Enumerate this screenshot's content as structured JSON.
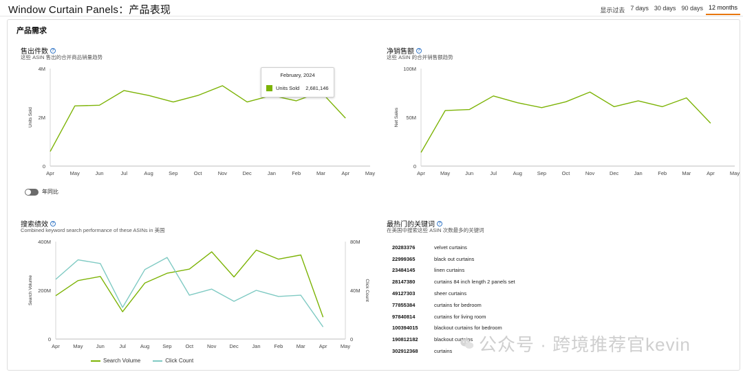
{
  "header": {
    "title": "Window Curtain Panels：产品表现",
    "range_label": "显示过去",
    "range_options": [
      "7 days",
      "30 days",
      "90 days",
      "12 months"
    ],
    "range_active": "12 months",
    "accent": "#e7760d"
  },
  "section_title": "产品需求",
  "units_panel": {
    "title": "售出件数",
    "subtitle": "这些 ASIN 售出的合并商品销量趋势",
    "toggle_label": "年同比",
    "tooltip": {
      "title": "February, 2024",
      "series": "Units Sold",
      "value": "2,681,146"
    }
  },
  "sales_panel": {
    "title": "净销售额",
    "subtitle": "这些 ASIN 的合并销售额趋势"
  },
  "search_panel": {
    "title": "搜索绩效",
    "subtitle": "Combined keyword search performance of these ASINs in 美国",
    "legend": [
      "Search Volume",
      "Click Count"
    ]
  },
  "keywords_panel": {
    "title": "最热门的关键词",
    "subtitle": "在美国中搜索这些 ASIN 次数最多的关键词",
    "rows": [
      {
        "rank": "20283376",
        "keyword": "velvet curtains"
      },
      {
        "rank": "22999365",
        "keyword": "black out curtains"
      },
      {
        "rank": "23484145",
        "keyword": "linen curtains"
      },
      {
        "rank": "28147380",
        "keyword": "curtains 84 inch length 2 panels set"
      },
      {
        "rank": "49127303",
        "keyword": "sheer curtains"
      },
      {
        "rank": "77855384",
        "keyword": "curtains for bedroom"
      },
      {
        "rank": "97840814",
        "keyword": "curtains for living room"
      },
      {
        "rank": "100394015",
        "keyword": "blackout curtains for bedroom"
      },
      {
        "rank": "190812182",
        "keyword": "blackout curtains"
      },
      {
        "rank": "302912368",
        "keyword": "curtains"
      }
    ]
  },
  "watermark": "公众号 · 跨境推荐官kevin",
  "chart_data": [
    {
      "type": "line",
      "x": [
        "Apr",
        "May",
        "Jun",
        "Jul",
        "Aug",
        "Sep",
        "Oct",
        "Nov",
        "Dec",
        "Jan",
        "Feb",
        "Mar",
        "Apr",
        "May"
      ],
      "series": [
        {
          "name": "Units Sold",
          "color": "#7cb305",
          "values": [
            0.6,
            2.47,
            2.5,
            3.1,
            2.9,
            2.63,
            2.9,
            3.3,
            2.63,
            2.9,
            2.68,
            3.05,
            1.97,
            null
          ]
        }
      ],
      "ylabel": "Units Sold",
      "yticks": [
        "0",
        "2M",
        "4M"
      ],
      "ylim": [
        0,
        4
      ]
    },
    {
      "type": "line",
      "x": [
        "Apr",
        "May",
        "Jun",
        "Jul",
        "Aug",
        "Sep",
        "Oct",
        "Nov",
        "Dec",
        "Jan",
        "Feb",
        "Mar",
        "Apr",
        "May"
      ],
      "series": [
        {
          "name": "Net Sales",
          "color": "#7cb305",
          "values": [
            14,
            57,
            58,
            72,
            65,
            60,
            66,
            76,
            61,
            67,
            61,
            70,
            44,
            null
          ]
        }
      ],
      "ylabel": "Net Sales",
      "yticks": [
        "0",
        "50M",
        "100M"
      ],
      "ylim": [
        0,
        100
      ]
    },
    {
      "type": "line",
      "x": [
        "Apr",
        "May",
        "Jun",
        "Jul",
        "Aug",
        "Sep",
        "Oct",
        "Nov",
        "Dec",
        "Jan",
        "Feb",
        "Mar",
        "Apr",
        "May"
      ],
      "series": [
        {
          "name": "Search Volume",
          "color": "#7cb305",
          "axis": "left",
          "values": [
            178,
            240,
            257,
            112,
            230,
            270,
            287,
            358,
            255,
            365,
            328,
            345,
            90,
            null
          ]
        },
        {
          "name": "Click Count",
          "color": "#7fcac3",
          "axis": "right",
          "values": [
            49,
            65,
            62,
            26,
            57,
            67,
            36,
            41,
            31,
            40,
            35,
            36,
            10,
            null
          ]
        }
      ],
      "ylabel": "Search Volume",
      "y2label": "Click Count",
      "yticks": [
        "0",
        "200M",
        "400M"
      ],
      "y2ticks": [
        "0",
        "40M",
        "80M"
      ],
      "ylim": [
        0,
        400
      ],
      "y2lim": [
        0,
        80
      ]
    }
  ]
}
